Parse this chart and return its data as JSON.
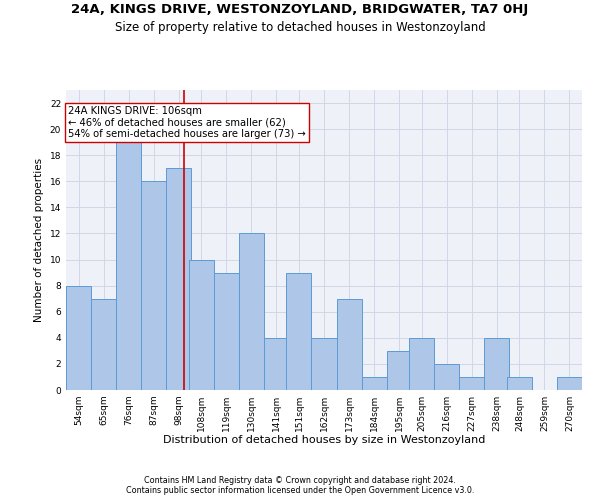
{
  "title": "24A, KINGS DRIVE, WESTONZOYLAND, BRIDGWATER, TA7 0HJ",
  "subtitle": "Size of property relative to detached houses in Westonzoyland",
  "xlabel": "Distribution of detached houses by size in Westonzoyland",
  "ylabel": "Number of detached properties",
  "footer1": "Contains HM Land Registry data © Crown copyright and database right 2024.",
  "footer2": "Contains public sector information licensed under the Open Government Licence v3.0.",
  "annotation_line1": "24A KINGS DRIVE: 106sqm",
  "annotation_line2": "← 46% of detached houses are smaller (62)",
  "annotation_line3": "54% of semi-detached houses are larger (73) →",
  "bar_color": "#aec6e8",
  "bar_edge_color": "#5b9bd5",
  "vline_color": "#cc0000",
  "vline_x": 106,
  "annotation_box_edge": "#cc0000",
  "annotation_box_face": "#ffffff",
  "categories": [
    54,
    65,
    76,
    87,
    98,
    108,
    119,
    130,
    141,
    151,
    162,
    173,
    184,
    195,
    205,
    216,
    227,
    238,
    248,
    259,
    270
  ],
  "values": [
    8,
    7,
    20,
    16,
    17,
    10,
    9,
    12,
    4,
    9,
    4,
    7,
    1,
    3,
    4,
    2,
    1,
    4,
    1,
    0,
    1
  ],
  "ylim": [
    0,
    23
  ],
  "yticks": [
    0,
    2,
    4,
    6,
    8,
    10,
    12,
    14,
    16,
    18,
    20,
    22
  ],
  "grid_color": "#d0d8e8",
  "bg_color": "#eef2f8",
  "title_fontsize": 9.5,
  "subtitle_fontsize": 8.5,
  "xlabel_fontsize": 8,
  "ylabel_fontsize": 7.5,
  "footer_fontsize": 5.8,
  "annotation_fontsize": 7.2,
  "tick_fontsize": 6.5
}
